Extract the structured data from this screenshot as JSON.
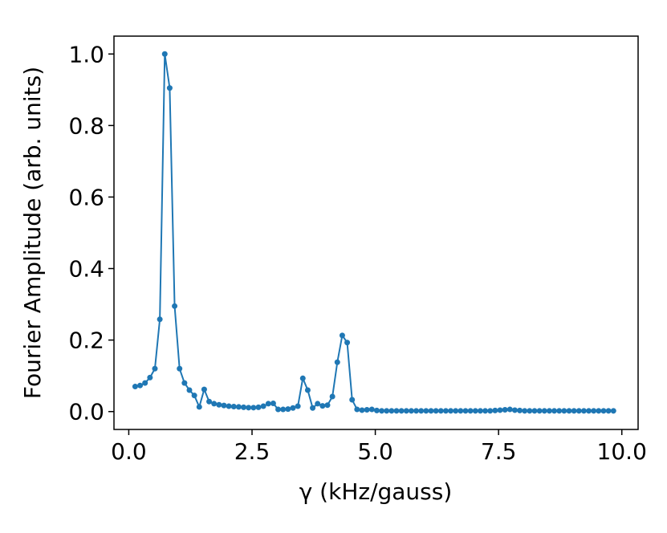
{
  "chart_data": {
    "type": "line",
    "x_label": "γ (kHz/gauss)",
    "y_label": "Fourier Amplitude (arb. units)",
    "xlim": [
      -0.3,
      10.33
    ],
    "ylim": [
      -0.05,
      1.05
    ],
    "xticks": [
      {
        "value": 0,
        "label": "0.0"
      },
      {
        "value": 2.5,
        "label": "2.5"
      },
      {
        "value": 5,
        "label": "5.0"
      },
      {
        "value": 7.5,
        "label": "7.5"
      },
      {
        "value": 10,
        "label": "10.0"
      }
    ],
    "yticks": [
      {
        "value": 0,
        "label": "0.0"
      },
      {
        "value": 0.2,
        "label": "0.2"
      },
      {
        "value": 0.4,
        "label": "0.4"
      },
      {
        "value": 0.6,
        "label": "0.6"
      },
      {
        "value": 0.8,
        "label": "0.8"
      },
      {
        "value": 1,
        "label": "1.0"
      }
    ],
    "grid": false,
    "series": [
      {
        "color": "#1f77b4",
        "x": [
          0.13,
          0.23,
          0.33,
          0.43,
          0.53,
          0.63,
          0.73,
          0.83,
          0.93,
          1.03,
          1.13,
          1.23,
          1.33,
          1.43,
          1.53,
          1.63,
          1.73,
          1.83,
          1.93,
          2.03,
          2.13,
          2.23,
          2.33,
          2.43,
          2.53,
          2.63,
          2.73,
          2.83,
          2.93,
          3.03,
          3.13,
          3.23,
          3.33,
          3.43,
          3.53,
          3.63,
          3.73,
          3.83,
          3.93,
          4.03,
          4.13,
          4.23,
          4.33,
          4.43,
          4.53,
          4.63,
          4.73,
          4.83,
          4.93,
          5.03,
          5.13,
          5.23,
          5.33,
          5.43,
          5.53,
          5.63,
          5.73,
          5.83,
          5.93,
          6.03,
          6.13,
          6.23,
          6.33,
          6.43,
          6.53,
          6.63,
          6.73,
          6.83,
          6.93,
          7.03,
          7.13,
          7.23,
          7.33,
          7.43,
          7.53,
          7.63,
          7.73,
          7.83,
          7.93,
          8.03,
          8.13,
          8.23,
          8.33,
          8.43,
          8.53,
          8.63,
          8.73,
          8.83,
          8.93,
          9.03,
          9.13,
          9.23,
          9.33,
          9.43,
          9.53,
          9.63,
          9.73,
          9.83
        ],
        "values": [
          0.07,
          0.073,
          0.08,
          0.095,
          0.12,
          0.258,
          1.0,
          0.905,
          0.295,
          0.12,
          0.08,
          0.06,
          0.045,
          0.013,
          0.062,
          0.028,
          0.022,
          0.019,
          0.017,
          0.015,
          0.014,
          0.013,
          0.012,
          0.011,
          0.011,
          0.012,
          0.015,
          0.022,
          0.023,
          0.006,
          0.006,
          0.007,
          0.01,
          0.015,
          0.093,
          0.06,
          0.01,
          0.022,
          0.016,
          0.018,
          0.042,
          0.138,
          0.213,
          0.193,
          0.033,
          0.006,
          0.004,
          0.005,
          0.006,
          0.003,
          0.002,
          0.002,
          0.002,
          0.002,
          0.002,
          0.002,
          0.002,
          0.002,
          0.002,
          0.002,
          0.002,
          0.002,
          0.002,
          0.002,
          0.002,
          0.002,
          0.002,
          0.002,
          0.002,
          0.002,
          0.002,
          0.002,
          0.002,
          0.003,
          0.004,
          0.005,
          0.006,
          0.004,
          0.003,
          0.002,
          0.002,
          0.002,
          0.002,
          0.002,
          0.002,
          0.002,
          0.002,
          0.002,
          0.002,
          0.002,
          0.002,
          0.002,
          0.002,
          0.002,
          0.002,
          0.002,
          0.002,
          0.002
        ]
      }
    ]
  }
}
